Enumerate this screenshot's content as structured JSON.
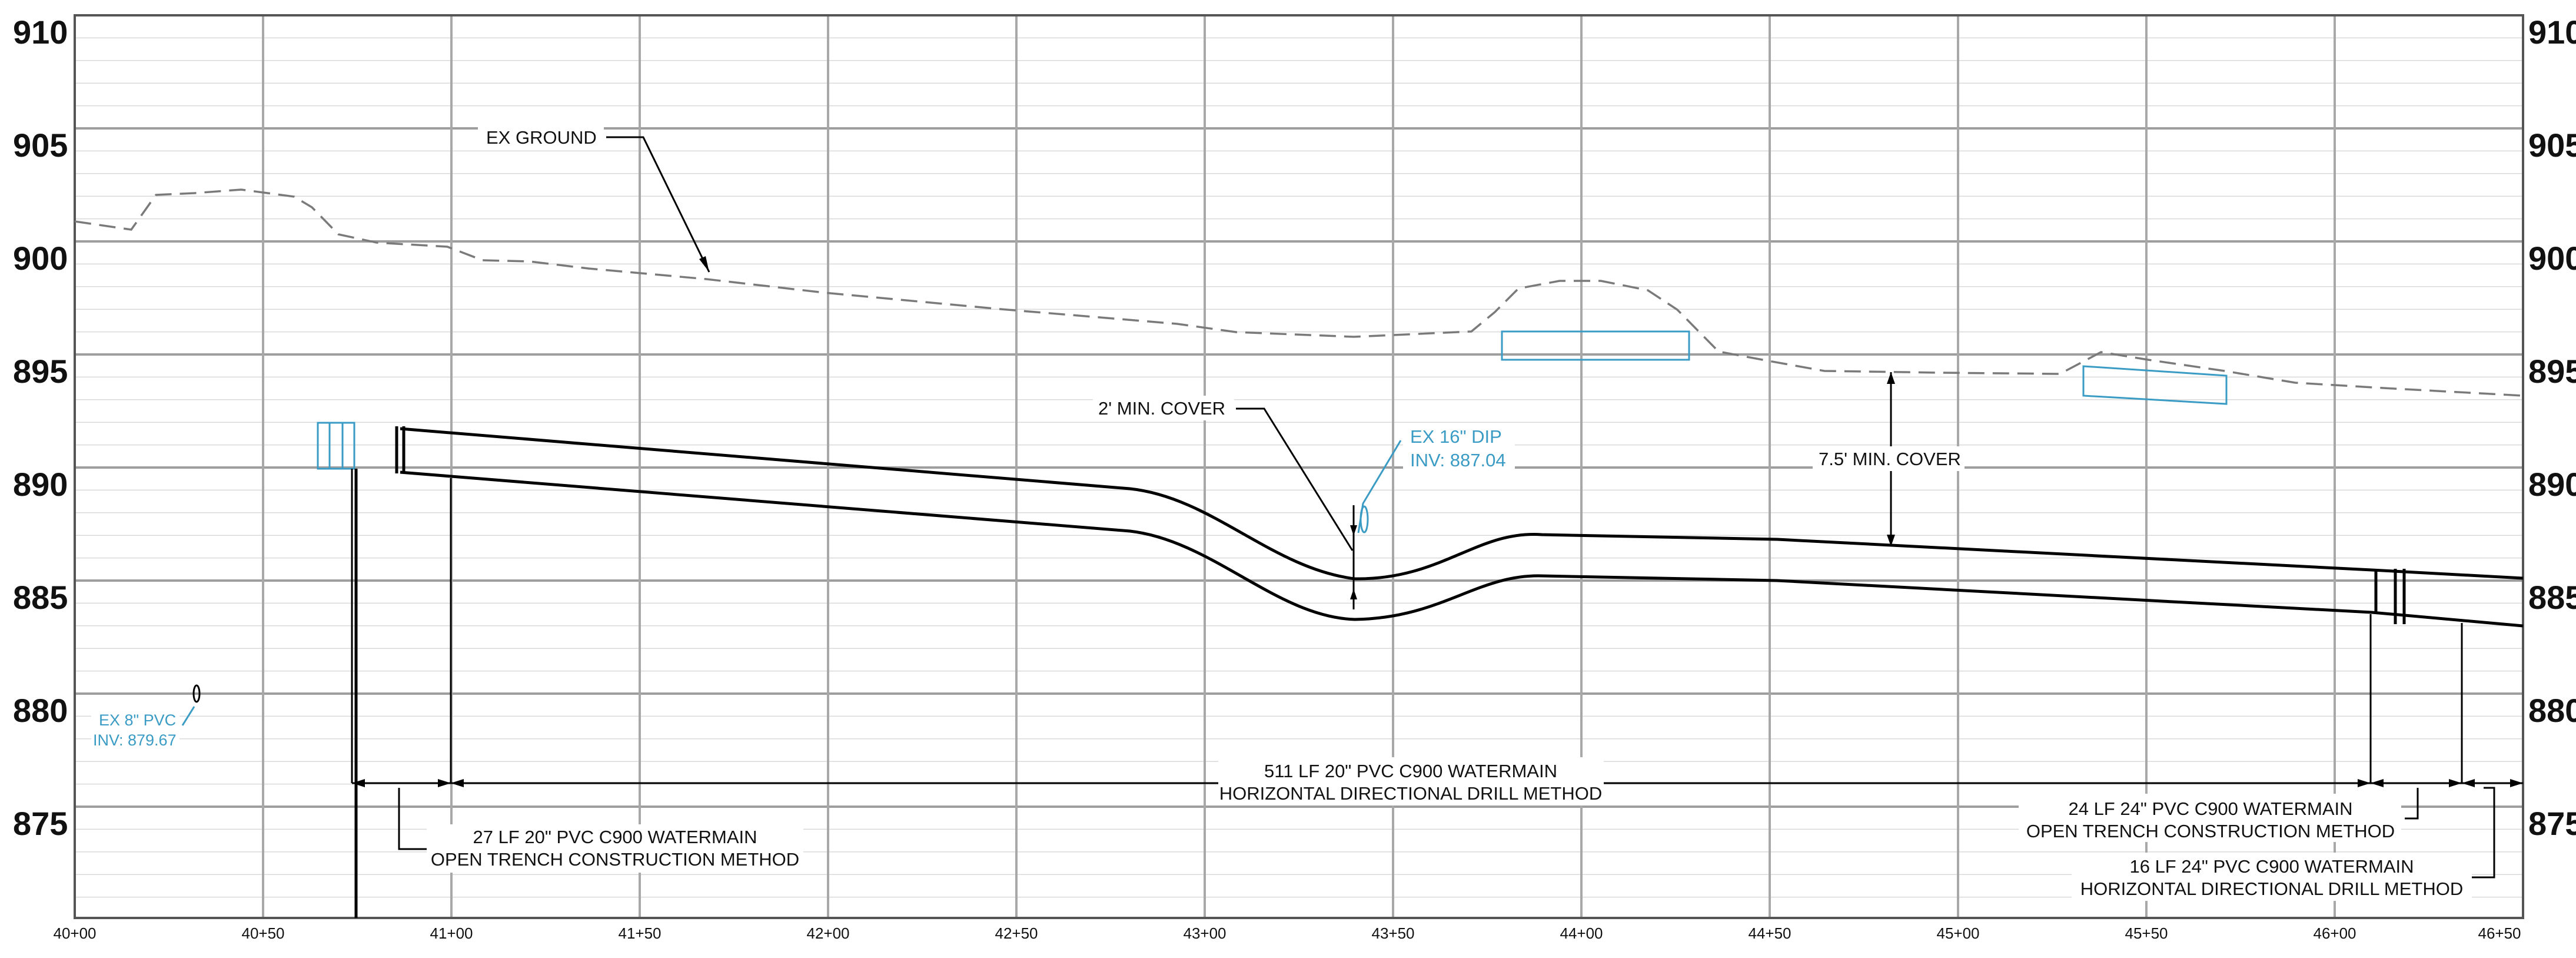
{
  "drawing": {
    "elevation_labels": [
      "910",
      "905",
      "900",
      "895",
      "890",
      "885",
      "880",
      "875"
    ],
    "station_labels": [
      "40+00",
      "40+50",
      "41+00",
      "41+50",
      "42+00",
      "42+50",
      "43+00",
      "43+50",
      "44+00",
      "44+50",
      "45+00",
      "45+50",
      "46+00",
      "46+50"
    ],
    "ex_ground_label": "EX GROUND",
    "min_cover_2_label": "2' MIN. COVER",
    "min_cover_7_label": "7.5' MIN. COVER",
    "ex_dip": {
      "line1": "EX 16\" DIP",
      "line2": "INV: 887.04"
    },
    "ex_pvc": {
      "line1": "EX 8\" PVC",
      "line2": "INV: 879.67"
    },
    "seg_hdd_511": {
      "line1": "511 LF 20\" PVC C900 WATERMAIN",
      "line2": "HORIZONTAL DIRECTIONAL DRILL METHOD"
    },
    "seg_open_27": {
      "line1": "27 LF 20\" PVC C900 WATERMAIN",
      "line2": "OPEN TRENCH CONSTRUCTION METHOD"
    },
    "seg_open_24": {
      "line1": "24 LF 24\" PVC C900 WATERMAIN",
      "line2": "OPEN TRENCH CONSTRUCTION METHOD"
    },
    "seg_hdd_16": {
      "line1": "16 LF 24\" PVC C900 WATERMAIN",
      "line2": "HORIZONTAL DIRECTIONAL DRILL METHOD"
    }
  }
}
